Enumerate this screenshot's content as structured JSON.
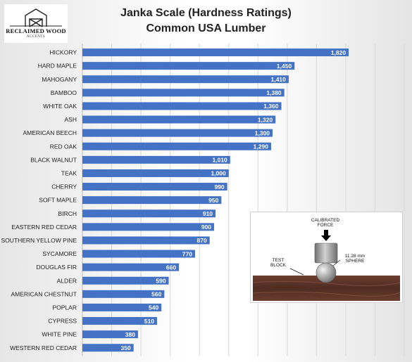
{
  "logo": {
    "name": "RECLAIMED WOOD",
    "sub": "ACCENTS"
  },
  "chart_data": {
    "type": "bar",
    "orientation": "horizontal",
    "title": "Janka Scale (Hardness Ratings)",
    "subtitle": "Common USA Lumber",
    "xlabel": "",
    "ylabel": "",
    "xlim": [
      0,
      2200
    ],
    "grid": true,
    "legend": "none",
    "bar_color": "#4472c4",
    "categories": [
      "HICKORY",
      "HARD MAPLE",
      "MAHOGANY",
      "BAMBOO",
      "WHITE OAK",
      "ASH",
      "AMERICAN BEECH",
      "RED OAK",
      "BLACK WALNUT",
      "TEAK",
      "CHERRY",
      "SOFT MAPLE",
      "BIRCH",
      "EASTERN RED CEDAR",
      "SOUTHERN YELLOW PINE",
      "SYCAMORE",
      "DOUGLAS FIR",
      "ALDER",
      "AMERICAN CHESTNUT",
      "POPLAR",
      "CYPRESS",
      "WHITE PINE",
      "WESTERN RED CEDAR"
    ],
    "values": [
      1820,
      1450,
      1410,
      1380,
      1360,
      1320,
      1300,
      1290,
      1010,
      1000,
      990,
      950,
      910,
      900,
      870,
      770,
      660,
      590,
      560,
      540,
      510,
      380,
      350
    ],
    "data_labels": [
      "1,820",
      "1,450",
      "1,410",
      "1,380",
      "1,360",
      "1,320",
      "1,300",
      "1,290",
      "1,010",
      "1,000",
      "990",
      "950",
      "910",
      "900",
      "870",
      "770",
      "660",
      "590",
      "560",
      "540",
      "510",
      "380",
      "350"
    ]
  },
  "inset": {
    "force_label": "CALIBRATED\nFORCE",
    "block_label": "TEST\nBLOCK",
    "sphere_label": "11.28 mm\nSPHERE",
    "wood_color": "#5a3428"
  }
}
